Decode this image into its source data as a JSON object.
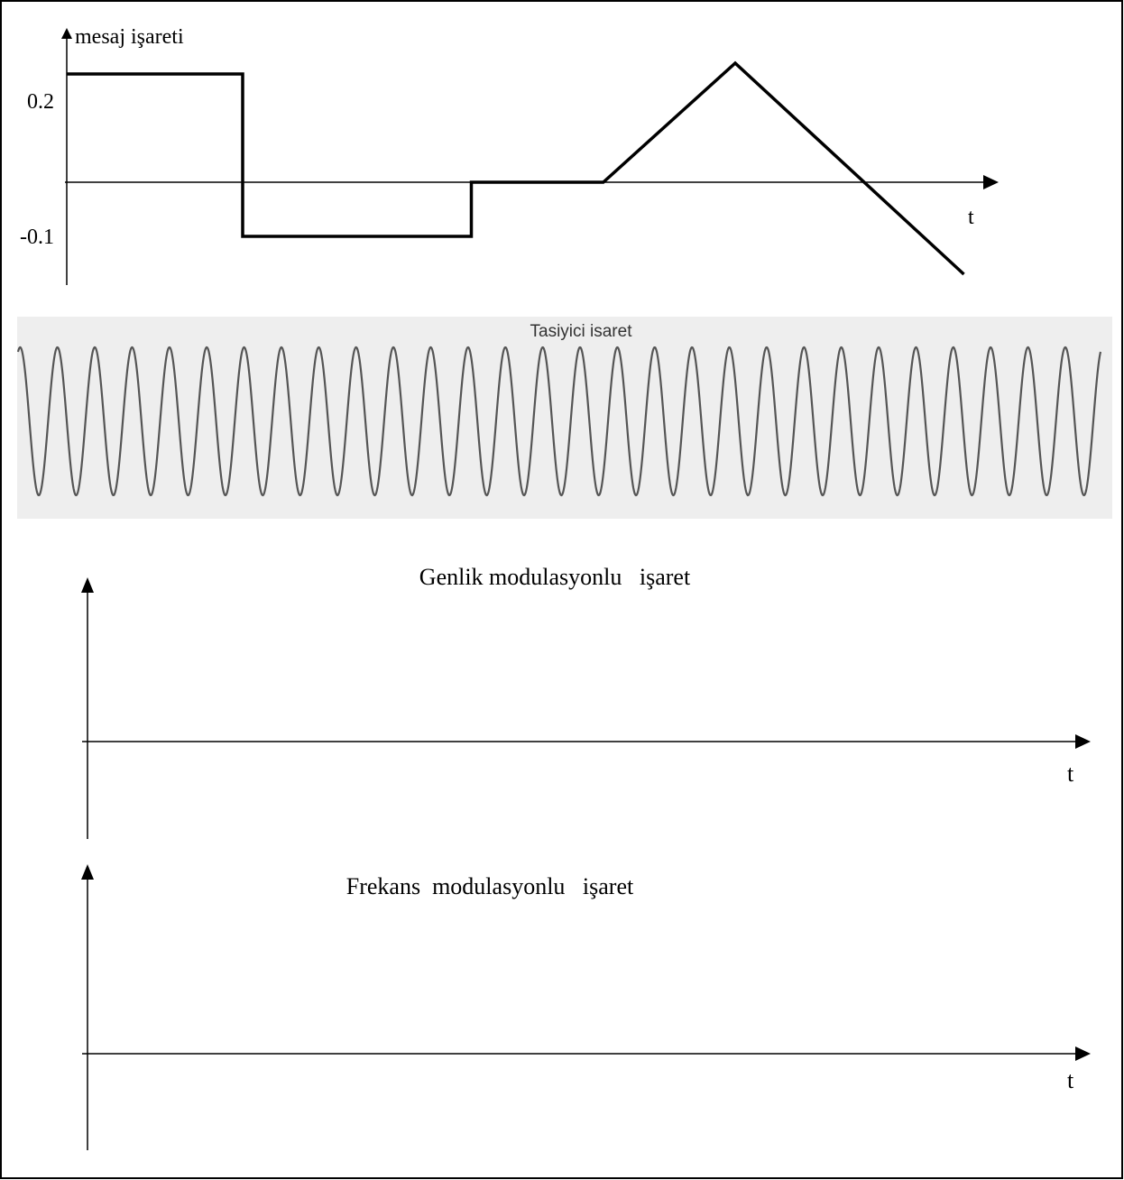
{
  "message_plot": {
    "y_axis_label": "mesaj işareti",
    "tick_high": "0.2",
    "tick_low": "-0.1",
    "x_axis_label": "t",
    "signal": [
      {
        "t": 0,
        "v": 0.2
      },
      {
        "t": 1,
        "v": 0.2
      },
      {
        "t": 1,
        "v": -0.1
      },
      {
        "t": 2.3,
        "v": -0.1
      },
      {
        "t": 2.3,
        "v": 0
      },
      {
        "t": 3.05,
        "v": 0
      },
      {
        "t": 3.8,
        "v": 0.22
      },
      {
        "t": 5.1,
        "v": -0.17
      }
    ]
  },
  "carrier_plot": {
    "title": "Tasiyici isaret",
    "cycles": 29,
    "background": "#eeeeee",
    "line_color": "#555555"
  },
  "am_plot": {
    "title": "Genlik modulasyonlu   işaret",
    "x_axis_label": "t"
  },
  "fm_plot": {
    "title": "Frekans  modulasyonlu   işaret",
    "x_axis_label": "t"
  }
}
